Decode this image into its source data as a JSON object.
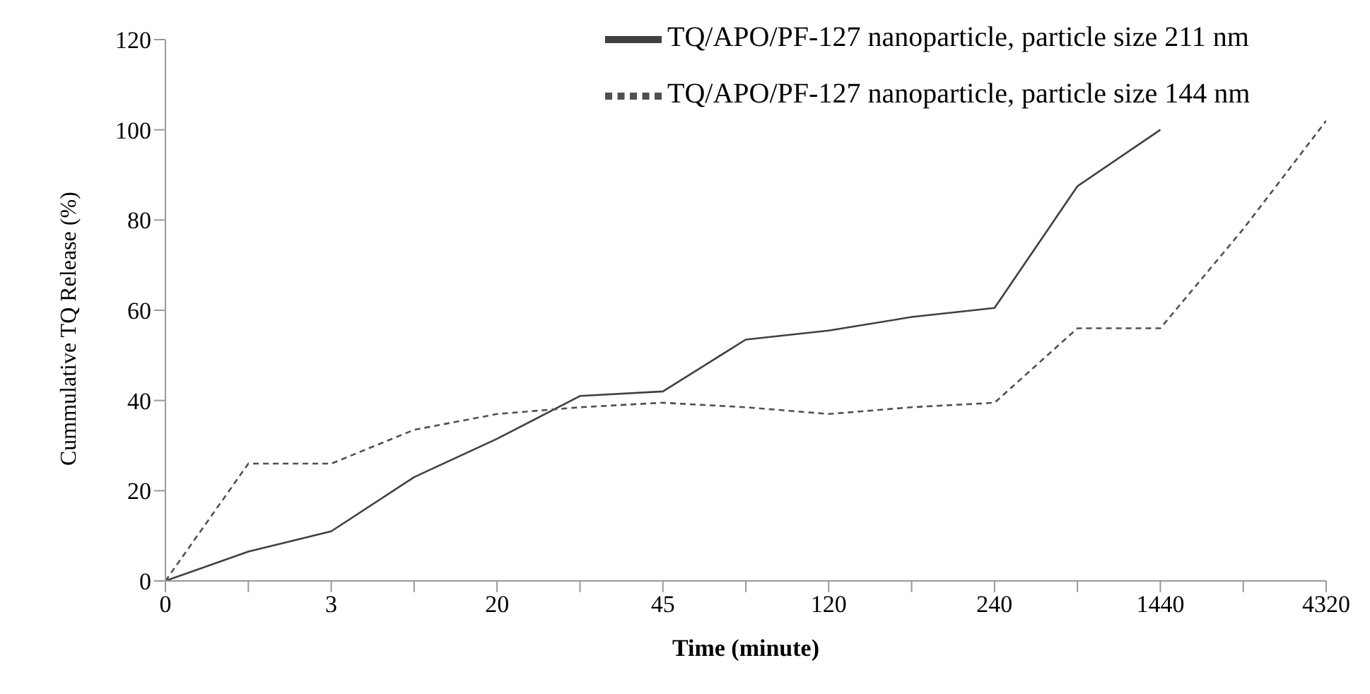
{
  "chart_data": {
    "type": "line",
    "xlabel": "Time (minute)",
    "ylabel": "Cummulative TQ Release (%)",
    "categories": [
      "0",
      null,
      "3",
      null,
      "20",
      null,
      "45",
      null,
      "120",
      null,
      "240",
      null,
      "1440",
      null,
      "4320"
    ],
    "series": [
      {
        "name": "TQ/APO/PF-127 nanoparticle, particle size 211 nm",
        "color": "#404040",
        "line_style": "solid",
        "values": [
          0,
          6.5,
          11,
          23,
          31.5,
          41,
          42,
          53.5,
          55.5,
          58.5,
          60.5,
          87.5,
          100,
          null,
          null
        ]
      },
      {
        "name": "TQ/APO/PF-127 nanoparticle, particle size 144 nm",
        "color": "#505050",
        "line_style": "dashed",
        "values": [
          0,
          26,
          26,
          33.5,
          37,
          38.5,
          39.5,
          38.5,
          37,
          38.5,
          39.5,
          56,
          56,
          78,
          102
        ]
      }
    ],
    "ylim": [
      0,
      120
    ],
    "yticks": [
      0,
      20,
      40,
      60,
      80,
      100,
      120
    ],
    "grid": false,
    "legend": "top right",
    "marker": "none"
  }
}
